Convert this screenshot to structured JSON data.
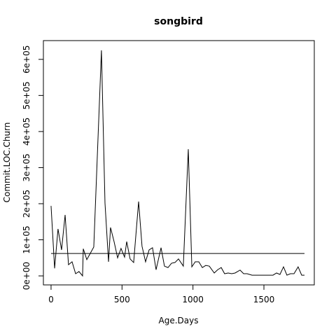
{
  "chart_data": {
    "type": "line",
    "title": "songbird",
    "x_label": "Age.Days",
    "y_label": "Commit.LOC.Churn",
    "x": [
      0,
      25,
      49,
      74,
      99,
      123,
      148,
      173,
      197,
      222,
      227,
      252,
      301,
      355,
      380,
      405,
      419,
      444,
      469,
      493,
      518,
      533,
      557,
      582,
      617,
      641,
      666,
      691,
      715,
      740,
      775,
      799,
      824,
      849,
      873,
      898,
      932,
      967,
      992,
      1016,
      1041,
      1066,
      1090,
      1115,
      1150,
      1174,
      1199,
      1223,
      1248,
      1273,
      1297,
      1332,
      1357,
      1381,
      1416,
      1515,
      1564,
      1589,
      1613,
      1638,
      1662,
      1687,
      1712,
      1741,
      1766,
      1786
    ],
    "series": [
      {
        "name": "Commit.LOC.Churn",
        "color": "#000000",
        "values": [
          194000,
          21000,
          130000,
          72000,
          169000,
          31000,
          39000,
          6000,
          12000,
          0,
          75000,
          45000,
          80000,
          625000,
          202000,
          39000,
          134000,
          95000,
          50000,
          76000,
          52000,
          95000,
          47000,
          37000,
          206000,
          82000,
          39000,
          72000,
          78000,
          17000,
          78000,
          27000,
          23000,
          35000,
          37000,
          47000,
          27000,
          351000,
          25000,
          39000,
          39000,
          23000,
          29000,
          27000,
          8000,
          17000,
          23000,
          6000,
          8000,
          6000,
          8000,
          16000,
          6000,
          6000,
          2000,
          2000,
          2000,
          8000,
          4000,
          25000,
          2000,
          6000,
          6000,
          25000,
          2000,
          2000
        ]
      }
    ],
    "hline": 62000,
    "xlim": [
      -54,
      1855
    ],
    "ylim": [
      -25000,
      652000
    ],
    "xticks": [
      0,
      500,
      1000,
      1500
    ],
    "yticks": [
      {
        "value": 0,
        "label": "0e+00"
      },
      {
        "value": 100000,
        "label": "1e+05"
      },
      {
        "value": 200000,
        "label": "2e+05"
      },
      {
        "value": 300000,
        "label": "3e+05"
      },
      {
        "value": 400000,
        "label": "4e+05"
      },
      {
        "value": 500000,
        "label": "5e+05"
      },
      {
        "value": 600000,
        "label": "6e+05"
      }
    ]
  }
}
